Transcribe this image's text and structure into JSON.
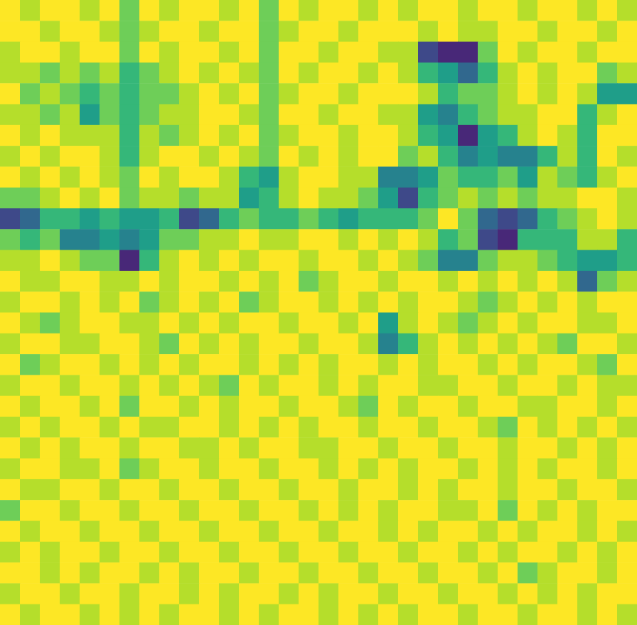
{
  "chart_data": {
    "type": "heatmap",
    "color": "viridis",
    "zlim": [
      0,
      9
    ],
    "tick_labels": false,
    "cells": [
      [
        9,
        8,
        9,
        9,
        8,
        9,
        7,
        9,
        8,
        9,
        9,
        8,
        9,
        7,
        9,
        8,
        9,
        9,
        8,
        9,
        8,
        9,
        9,
        8,
        9,
        9,
        8,
        9,
        9,
        8,
        9,
        8
      ],
      [
        9,
        9,
        8,
        9,
        9,
        8,
        7,
        8,
        9,
        9,
        8,
        9,
        9,
        7,
        8,
        9,
        9,
        8,
        9,
        9,
        9,
        8,
        9,
        8,
        8,
        9,
        9,
        8,
        9,
        9,
        8,
        9
      ],
      [
        8,
        9,
        9,
        8,
        9,
        9,
        7,
        9,
        8,
        9,
        9,
        8,
        9,
        7,
        9,
        9,
        8,
        9,
        9,
        8,
        8,
        2,
        1,
        1,
        7,
        9,
        8,
        9,
        9,
        8,
        9,
        9
      ],
      [
        8,
        8,
        7,
        8,
        7,
        8,
        6,
        7,
        8,
        9,
        8,
        9,
        8,
        7,
        9,
        8,
        9,
        9,
        8,
        9,
        8,
        6,
        5,
        3,
        6,
        8,
        9,
        8,
        9,
        9,
        7,
        8
      ],
      [
        9,
        7,
        8,
        7,
        6,
        7,
        6,
        7,
        7,
        8,
        9,
        8,
        9,
        7,
        8,
        9,
        9,
        8,
        9,
        9,
        9,
        8,
        6,
        7,
        7,
        8,
        9,
        8,
        9,
        8,
        5,
        5
      ],
      [
        8,
        8,
        7,
        8,
        5,
        7,
        6,
        7,
        8,
        8,
        9,
        9,
        8,
        7,
        9,
        9,
        8,
        9,
        9,
        8,
        8,
        5,
        4,
        6,
        7,
        8,
        8,
        9,
        9,
        6,
        8,
        9
      ],
      [
        9,
        8,
        9,
        8,
        8,
        8,
        6,
        8,
        7,
        8,
        9,
        8,
        9,
        7,
        8,
        9,
        9,
        8,
        9,
        9,
        8,
        6,
        5,
        1,
        5,
        6,
        8,
        9,
        8,
        6,
        9,
        9
      ],
      [
        8,
        9,
        8,
        9,
        9,
        8,
        6,
        8,
        9,
        9,
        8,
        9,
        8,
        7,
        9,
        8,
        9,
        8,
        9,
        9,
        7,
        8,
        6,
        4,
        5,
        4,
        4,
        6,
        8,
        6,
        9,
        8
      ],
      [
        9,
        8,
        9,
        8,
        9,
        8,
        7,
        9,
        8,
        9,
        9,
        8,
        6,
        5,
        8,
        9,
        9,
        8,
        8,
        4,
        4,
        5,
        7,
        6,
        6,
        7,
        5,
        8,
        7,
        6,
        8,
        9
      ],
      [
        7,
        7,
        8,
        9,
        8,
        9,
        7,
        8,
        8,
        7,
        8,
        8,
        5,
        6,
        8,
        9,
        8,
        8,
        7,
        5,
        2,
        6,
        7,
        8,
        7,
        8,
        7,
        8,
        8,
        9,
        9,
        8
      ],
      [
        2,
        3,
        6,
        6,
        5,
        6,
        5,
        5,
        6,
        2,
        3,
        6,
        7,
        6,
        6,
        7,
        6,
        5,
        6,
        6,
        6,
        7,
        9,
        7,
        3,
        2,
        3,
        6,
        7,
        8,
        9,
        8
      ],
      [
        7,
        6,
        7,
        4,
        4,
        5,
        4,
        5,
        7,
        7,
        8,
        8,
        9,
        8,
        8,
        9,
        9,
        8,
        9,
        8,
        9,
        8,
        6,
        7,
        2,
        1,
        6,
        6,
        6,
        8,
        8,
        6
      ],
      [
        8,
        8,
        9,
        8,
        7,
        7,
        1,
        6,
        8,
        9,
        8,
        9,
        8,
        9,
        9,
        8,
        9,
        9,
        8,
        9,
        8,
        7,
        4,
        4,
        7,
        8,
        8,
        7,
        6,
        5,
        5,
        6
      ],
      [
        9,
        8,
        8,
        9,
        9,
        8,
        8,
        9,
        8,
        9,
        9,
        8,
        9,
        8,
        9,
        7,
        8,
        9,
        9,
        8,
        9,
        9,
        8,
        9,
        8,
        9,
        8,
        9,
        8,
        3,
        7,
        8
      ],
      [
        8,
        9,
        9,
        8,
        9,
        8,
        9,
        7,
        8,
        9,
        8,
        9,
        7,
        8,
        9,
        9,
        8,
        9,
        8,
        9,
        8,
        9,
        9,
        8,
        7,
        8,
        9,
        8,
        9,
        8,
        9,
        9
      ],
      [
        9,
        8,
        7,
        8,
        9,
        9,
        8,
        8,
        9,
        8,
        9,
        8,
        9,
        9,
        8,
        9,
        9,
        8,
        9,
        5,
        8,
        9,
        8,
        7,
        8,
        9,
        8,
        9,
        9,
        8,
        8,
        9
      ],
      [
        8,
        9,
        9,
        8,
        8,
        9,
        9,
        8,
        7,
        9,
        8,
        9,
        8,
        9,
        9,
        8,
        9,
        9,
        8,
        4,
        6,
        8,
        9,
        8,
        9,
        8,
        9,
        8,
        7,
        9,
        9,
        8
      ],
      [
        9,
        7,
        8,
        9,
        9,
        8,
        9,
        8,
        9,
        8,
        9,
        9,
        8,
        9,
        8,
        9,
        8,
        9,
        9,
        8,
        9,
        8,
        9,
        9,
        8,
        9,
        8,
        9,
        9,
        8,
        7,
        9
      ],
      [
        8,
        9,
        9,
        8,
        9,
        9,
        8,
        9,
        8,
        9,
        8,
        7,
        9,
        8,
        9,
        9,
        8,
        9,
        8,
        9,
        9,
        8,
        8,
        9,
        9,
        8,
        9,
        9,
        8,
        9,
        8,
        8
      ],
      [
        9,
        8,
        9,
        9,
        8,
        9,
        7,
        9,
        9,
        8,
        9,
        8,
        9,
        9,
        8,
        9,
        9,
        8,
        7,
        9,
        8,
        9,
        9,
        8,
        9,
        9,
        8,
        8,
        9,
        9,
        8,
        9
      ],
      [
        8,
        9,
        8,
        9,
        9,
        8,
        9,
        8,
        8,
        9,
        9,
        8,
        9,
        8,
        9,
        8,
        9,
        9,
        8,
        9,
        9,
        8,
        9,
        9,
        8,
        7,
        9,
        8,
        9,
        8,
        9,
        8
      ],
      [
        9,
        8,
        9,
        8,
        9,
        9,
        8,
        9,
        9,
        8,
        8,
        9,
        8,
        9,
        9,
        8,
        8,
        9,
        9,
        8,
        9,
        9,
        8,
        9,
        9,
        8,
        9,
        9,
        8,
        9,
        8,
        9
      ],
      [
        8,
        9,
        9,
        8,
        8,
        9,
        7,
        8,
        9,
        9,
        8,
        9,
        9,
        8,
        9,
        9,
        8,
        9,
        8,
        9,
        8,
        9,
        9,
        8,
        9,
        8,
        9,
        8,
        9,
        9,
        8,
        9
      ],
      [
        9,
        8,
        8,
        9,
        9,
        8,
        9,
        9,
        8,
        9,
        9,
        8,
        9,
        9,
        8,
        9,
        9,
        8,
        9,
        9,
        8,
        9,
        8,
        9,
        9,
        8,
        9,
        9,
        8,
        9,
        9,
        8
      ],
      [
        7,
        9,
        9,
        8,
        9,
        9,
        8,
        9,
        9,
        8,
        9,
        9,
        8,
        9,
        9,
        8,
        9,
        8,
        9,
        8,
        9,
        9,
        8,
        8,
        9,
        7,
        9,
        8,
        9,
        8,
        9,
        9
      ],
      [
        9,
        8,
        9,
        9,
        8,
        9,
        9,
        8,
        9,
        9,
        8,
        9,
        9,
        8,
        9,
        9,
        8,
        9,
        9,
        8,
        9,
        8,
        9,
        9,
        8,
        9,
        8,
        9,
        9,
        8,
        9,
        8
      ],
      [
        8,
        9,
        8,
        9,
        9,
        8,
        9,
        9,
        8,
        9,
        9,
        8,
        9,
        9,
        8,
        9,
        9,
        8,
        9,
        9,
        8,
        9,
        9,
        8,
        9,
        8,
        9,
        9,
        8,
        9,
        8,
        9
      ],
      [
        9,
        9,
        8,
        9,
        8,
        9,
        9,
        8,
        9,
        8,
        9,
        9,
        8,
        9,
        9,
        8,
        9,
        9,
        8,
        9,
        9,
        8,
        9,
        9,
        8,
        9,
        7,
        8,
        9,
        9,
        8,
        9
      ],
      [
        8,
        9,
        9,
        8,
        9,
        9,
        8,
        9,
        9,
        8,
        9,
        8,
        9,
        9,
        8,
        9,
        8,
        9,
        9,
        8,
        9,
        9,
        8,
        9,
        9,
        8,
        9,
        8,
        9,
        8,
        9,
        9
      ],
      [
        9,
        8,
        9,
        9,
        8,
        9,
        8,
        9,
        8,
        9,
        9,
        8,
        9,
        8,
        9,
        9,
        8,
        9,
        8,
        9,
        8,
        9,
        9,
        8,
        9,
        9,
        8,
        9,
        9,
        8,
        9,
        8
      ]
    ]
  }
}
